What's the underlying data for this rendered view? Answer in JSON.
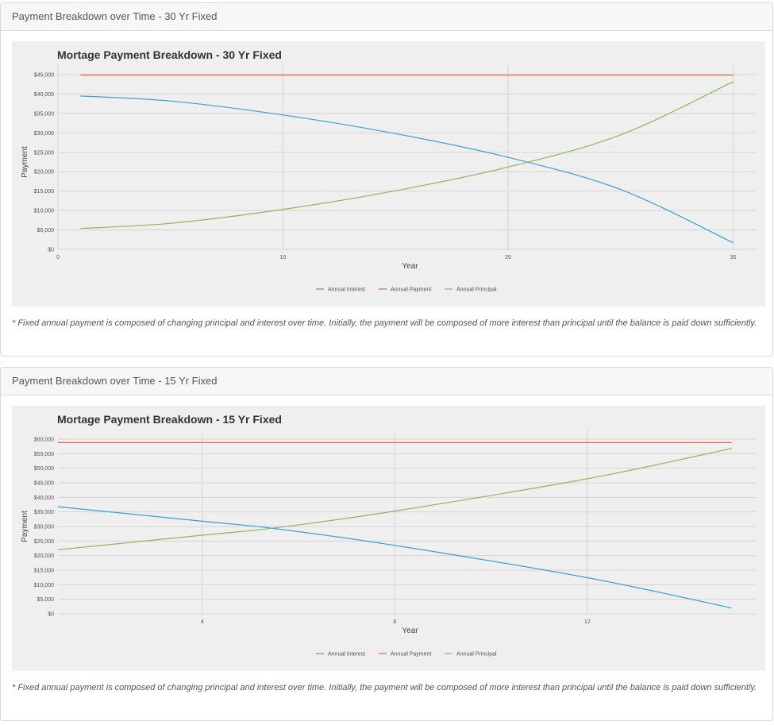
{
  "panels": [
    {
      "heading": "Payment Breakdown over Time - 30 Yr Fixed",
      "note": "* Fixed annual payment is composed of changing principal and interest over time. Initially, the payment will be composed of more interest than principal until the balance is paid down sufficiently."
    },
    {
      "heading": "Payment Breakdown over Time - 15 Yr Fixed",
      "note": "* Fixed annual payment is composed of changing principal and interest over time. Initially, the payment will be composed of more interest than principal until the balance is paid down sufficiently."
    }
  ],
  "chart_data": [
    {
      "type": "line",
      "title": "Mortage Payment Breakdown - 30 Yr Fixed",
      "xlabel": "Year",
      "ylabel": "Payment",
      "xlim": [
        0,
        31
      ],
      "ylim": [
        0,
        45000
      ],
      "xticks": [
        0,
        10,
        20,
        30
      ],
      "yticks": [
        0,
        5000,
        10000,
        15000,
        20000,
        25000,
        30000,
        35000,
        40000,
        45000
      ],
      "ytick_labels": [
        "$0",
        "$5,000",
        "$10,000",
        "$15,000",
        "$20,000",
        "$25,000",
        "$30,000",
        "$35,000",
        "$40,000",
        "$45,000"
      ],
      "grid": true,
      "legend_position": "bottom",
      "x": [
        1,
        5,
        10,
        15,
        20,
        25,
        30
      ],
      "series": [
        {
          "name": "Annual Interest",
          "color": "#3a9fd4",
          "values": [
            39500,
            38200,
            34600,
            29800,
            23700,
            15400,
            1700
          ]
        },
        {
          "name": "Annual Payment",
          "color": "#e8604c",
          "values": [
            44900,
            44900,
            44900,
            44900,
            44900,
            44900,
            44900
          ]
        },
        {
          "name": "Annual Principal",
          "color": "#8fb55e",
          "values": [
            5400,
            6700,
            10300,
            15100,
            21200,
            29500,
            43200
          ]
        }
      ]
    },
    {
      "type": "line",
      "title": "Mortage Payment Breakdown - 15 Yr Fixed",
      "xlabel": "Year",
      "ylabel": "Payment",
      "xlim": [
        1,
        15.5
      ],
      "ylim": [
        0,
        60000
      ],
      "xticks": [
        4,
        8,
        12
      ],
      "yticks": [
        0,
        5000,
        10000,
        15000,
        20000,
        25000,
        30000,
        35000,
        40000,
        45000,
        50000,
        55000,
        60000
      ],
      "ytick_labels": [
        "$0",
        "$5,000",
        "$10,000",
        "$15,000",
        "$20,000",
        "$25,000",
        "$30,000",
        "$35,000",
        "$40,000",
        "$45,000",
        "$50,000",
        "$55,000",
        "$60,000"
      ],
      "grid": true,
      "legend_position": "bottom",
      "x": [
        1,
        4,
        5.5,
        8,
        12,
        15
      ],
      "series": [
        {
          "name": "Annual Interest",
          "color": "#3a9fd4",
          "values": [
            36800,
            31800,
            29300,
            23500,
            12400,
            2000
          ]
        },
        {
          "name": "Annual Payment",
          "color": "#e8604c",
          "values": [
            58800,
            58800,
            58800,
            58800,
            58800,
            58800
          ]
        },
        {
          "name": "Annual Principal",
          "color": "#8fb55e",
          "values": [
            22000,
            27000,
            29500,
            35300,
            46400,
            56800
          ]
        }
      ]
    }
  ]
}
